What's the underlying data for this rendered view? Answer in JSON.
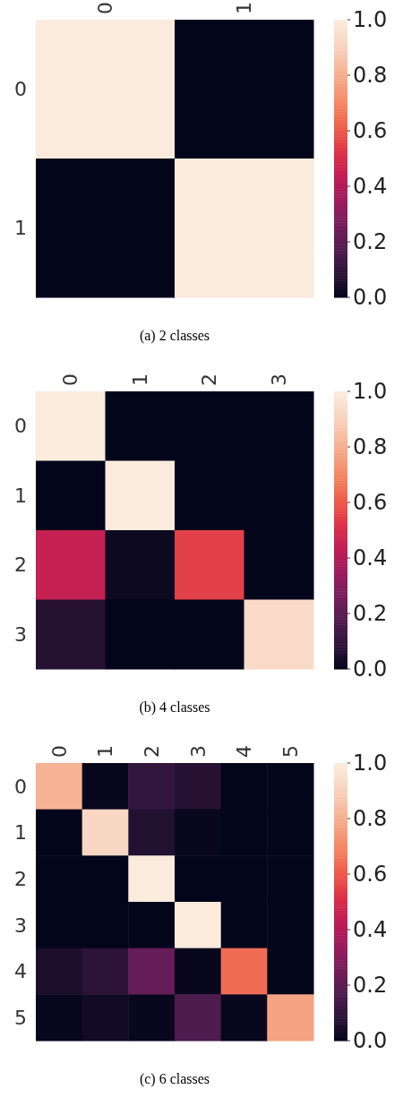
{
  "chart_data": [
    {
      "type": "heatmap",
      "title": "(a) 2 classes",
      "categories": [
        "0",
        "1"
      ],
      "y_categories": [
        "0",
        "1"
      ],
      "cells": [
        [
          1,
          0
        ],
        [
          0,
          1
        ]
      ],
      "clim": [
        0,
        1
      ],
      "cticks": [
        {
          "value": 0,
          "label": "0.0"
        },
        {
          "value": 0.2,
          "label": "0.2"
        },
        {
          "value": 0.4,
          "label": "0.4"
        },
        {
          "value": 0.6,
          "label": "0.6"
        },
        {
          "value": 0.8,
          "label": "0.8"
        },
        {
          "value": 1,
          "label": "1.0"
        }
      ]
    },
    {
      "type": "heatmap",
      "title": "(b) 4 classes",
      "categories": [
        "0",
        "1",
        "2",
        "3"
      ],
      "y_categories": [
        "0",
        "1",
        "2",
        "3"
      ],
      "cells": [
        [
          1,
          0,
          0,
          0
        ],
        [
          0,
          1,
          0,
          0
        ],
        [
          0.45,
          0.02,
          0.55,
          0
        ],
        [
          0.07,
          0,
          0,
          0.93
        ]
      ],
      "clim": [
        0,
        1
      ],
      "cticks": [
        {
          "value": 0,
          "label": "0.0"
        },
        {
          "value": 0.2,
          "label": "0.2"
        },
        {
          "value": 0.4,
          "label": "0.4"
        },
        {
          "value": 0.6,
          "label": "0.6"
        },
        {
          "value": 0.8,
          "label": "0.8"
        },
        {
          "value": 1,
          "label": "1.0"
        }
      ]
    },
    {
      "type": "heatmap",
      "title": "(c) 6 classes",
      "categories": [
        "0",
        "1",
        "2",
        "3",
        "4",
        "5"
      ],
      "y_categories": [
        "0",
        "1",
        "2",
        "3",
        "4",
        "5"
      ],
      "cells": [
        [
          0.81,
          0.01,
          0.1,
          0.07,
          0,
          0
        ],
        [
          0,
          0.92,
          0.06,
          0.01,
          0,
          0
        ],
        [
          0,
          0,
          1,
          0,
          0,
          0
        ],
        [
          0,
          0,
          0,
          1,
          0,
          0
        ],
        [
          0.05,
          0.08,
          0.22,
          0.01,
          0.64,
          0
        ],
        [
          0.01,
          0.03,
          0.01,
          0.17,
          0.01,
          0.77
        ]
      ],
      "clim": [
        0,
        1
      ],
      "cticks": [
        {
          "value": 0,
          "label": "0.0"
        },
        {
          "value": 0.2,
          "label": "0.2"
        },
        {
          "value": 0.4,
          "label": "0.4"
        },
        {
          "value": 0.6,
          "label": "0.6"
        },
        {
          "value": 0.8,
          "label": "0.8"
        },
        {
          "value": 1,
          "label": "1.0"
        }
      ]
    }
  ]
}
